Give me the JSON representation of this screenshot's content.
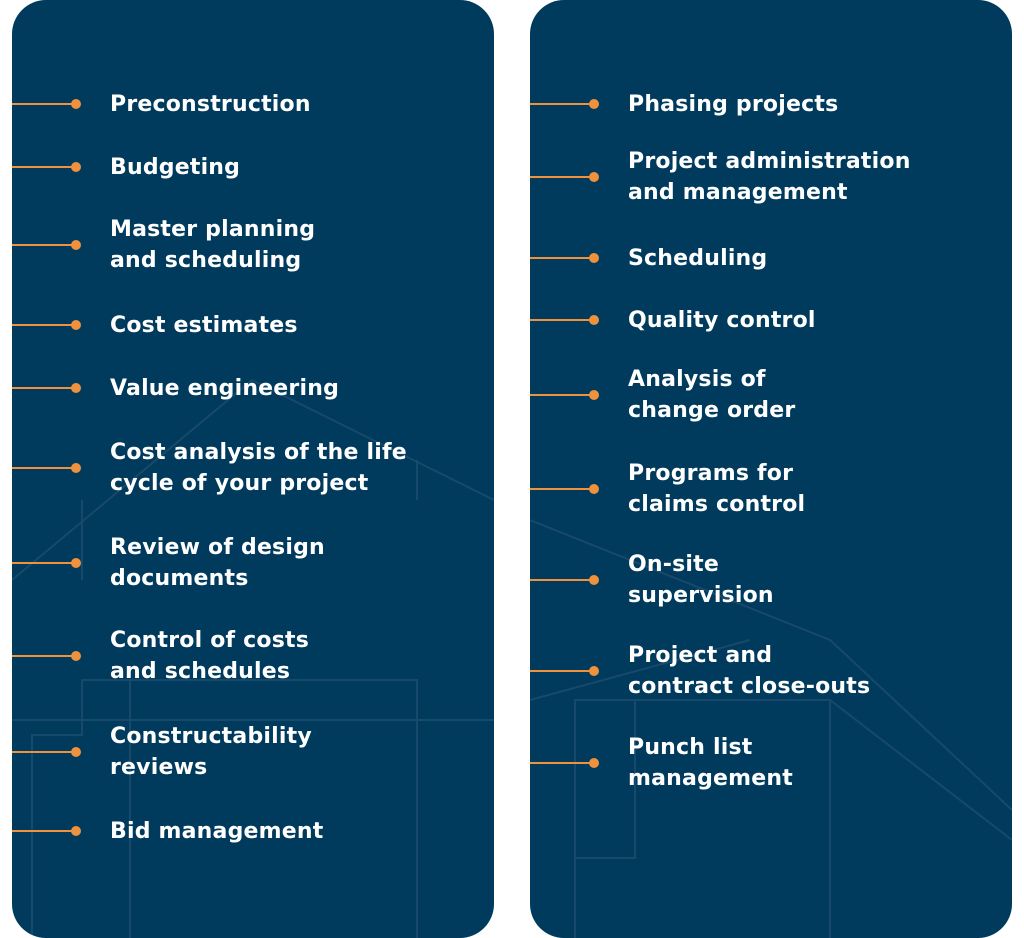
{
  "colors": {
    "panel_background": "#003a5d",
    "accent": "#f0913d",
    "text": "#ffffff"
  },
  "left_column": {
    "items": [
      {
        "lines": [
          "Preconstruction"
        ]
      },
      {
        "lines": [
          "Budgeting"
        ]
      },
      {
        "lines": [
          "Master planning",
          "and scheduling"
        ]
      },
      {
        "lines": [
          "Cost estimates"
        ]
      },
      {
        "lines": [
          "Value engineering"
        ]
      },
      {
        "lines": [
          "Cost analysis of the life",
          "cycle of your project"
        ]
      },
      {
        "lines": [
          "Review of design",
          "documents"
        ]
      },
      {
        "lines": [
          "Control of costs",
          "and schedules"
        ]
      },
      {
        "lines": [
          "Constructability",
          "reviews"
        ]
      },
      {
        "lines": [
          "Bid management"
        ]
      }
    ]
  },
  "right_column": {
    "items": [
      {
        "lines": [
          "Phasing projects"
        ]
      },
      {
        "lines": [
          "Project administration",
          "and management"
        ]
      },
      {
        "lines": [
          "Scheduling"
        ]
      },
      {
        "lines": [
          "Quality control"
        ]
      },
      {
        "lines": [
          "Analysis of",
          "change order"
        ]
      },
      {
        "lines": [
          "Programs for",
          "claims control"
        ]
      },
      {
        "lines": [
          "On-site",
          "supervision"
        ]
      },
      {
        "lines": [
          "Project and",
          "contract close-outs"
        ]
      },
      {
        "lines": [
          "Punch list",
          "management"
        ]
      }
    ]
  }
}
